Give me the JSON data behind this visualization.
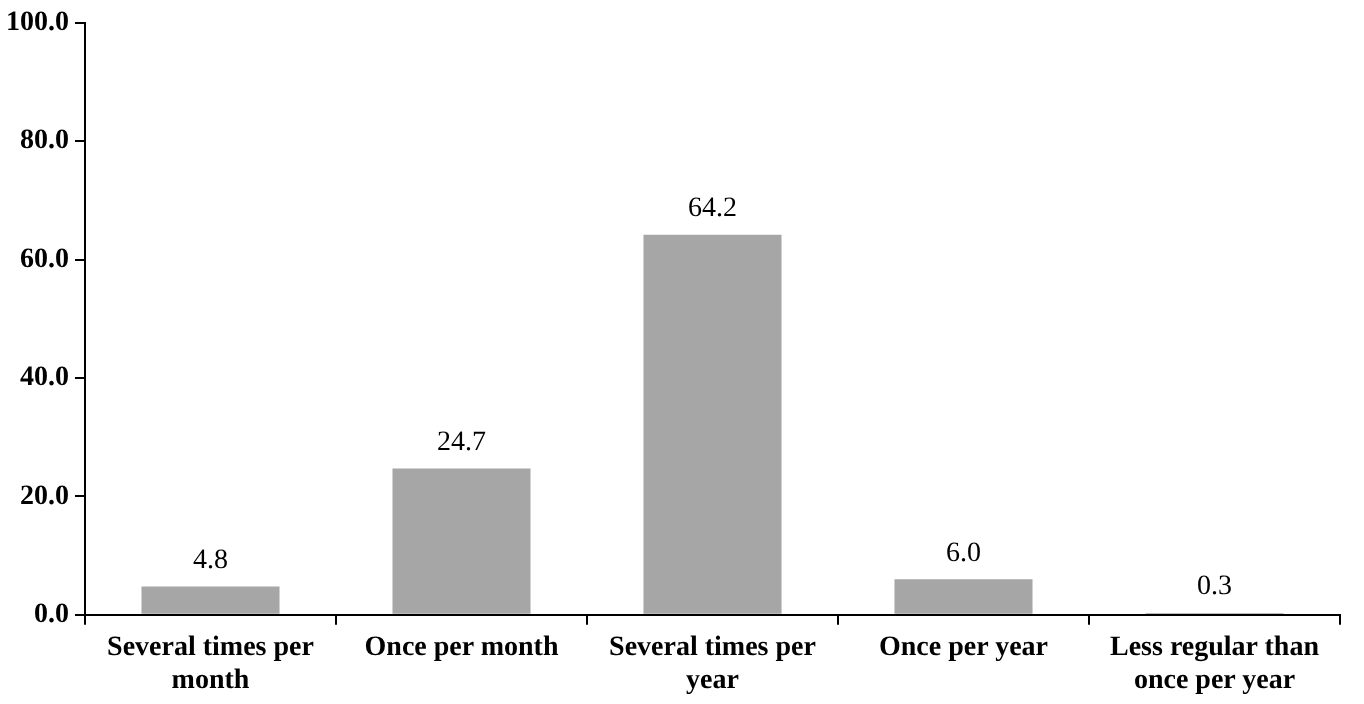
{
  "chart_data": {
    "type": "bar",
    "categories": [
      "Several times per month",
      "Once per month",
      "Several times per year",
      "Once per year",
      "Less regular than once per year"
    ],
    "values": [
      4.8,
      24.7,
      64.2,
      6.0,
      0.3
    ],
    "value_labels": [
      "4.8",
      "24.7",
      "64.2",
      "6.0",
      "0.3"
    ],
    "color": "#a6a6a6",
    "ylim": [
      0,
      100
    ],
    "yticks": [
      {
        "value": 0,
        "label": "0.0"
      },
      {
        "value": 20,
        "label": "20.0"
      },
      {
        "value": 40,
        "label": "40.0"
      },
      {
        "value": 60,
        "label": "60.0"
      },
      {
        "value": 80,
        "label": "80.0"
      },
      {
        "value": 100,
        "label": "100.0"
      }
    ],
    "grid": false,
    "legend": false
  }
}
